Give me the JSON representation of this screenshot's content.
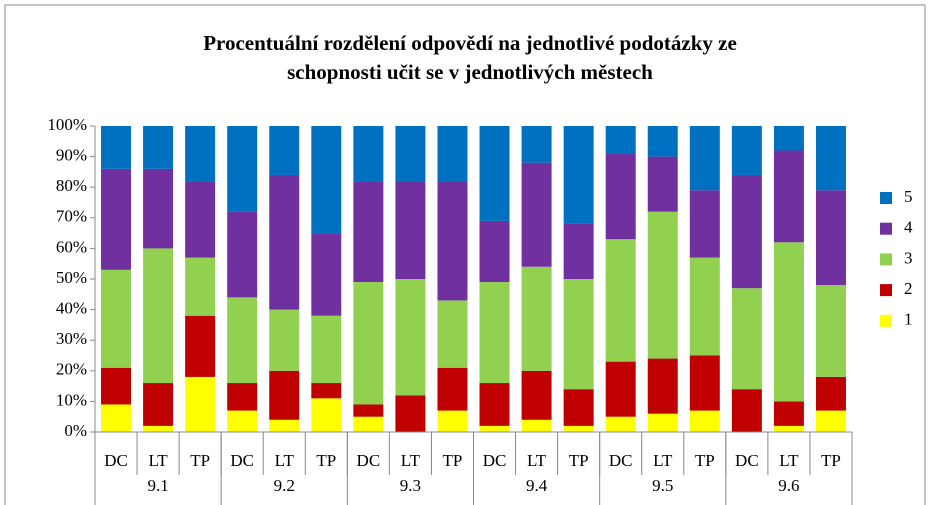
{
  "chart_data": {
    "type": "stacked_bar",
    "title": [
      "Procentuální rozdělení odpovědí na jednotlivé podotázky ze",
      "schopnosti učit se v jednotlivých městech"
    ],
    "categories": [
      "DC",
      "LT",
      "TP",
      "DC",
      "LT",
      "TP",
      "DC",
      "LT",
      "TP",
      "DC",
      "LT",
      "TP",
      "DC",
      "LT",
      "TP",
      "DC",
      "LT",
      "TP"
    ],
    "groups": [
      "9.1",
      "9.2",
      "9.3",
      "9.4",
      "9.5",
      "9.6"
    ],
    "series": [
      {
        "name": "1",
        "color": "#ffff00",
        "values": [
          9,
          2,
          18,
          7,
          4,
          11,
          5,
          0,
          7,
          2,
          4,
          2,
          5,
          6,
          7,
          0,
          2,
          7
        ]
      },
      {
        "name": "2",
        "color": "#c00000",
        "values": [
          12,
          14,
          20,
          9,
          16,
          5,
          4,
          12,
          14,
          14,
          16,
          12,
          18,
          18,
          18,
          14,
          8,
          11
        ]
      },
      {
        "name": "3",
        "color": "#92d050",
        "values": [
          32,
          44,
          19,
          28,
          20,
          22,
          40,
          38,
          22,
          33,
          34,
          36,
          40,
          48,
          32,
          33,
          52,
          30
        ]
      },
      {
        "name": "4",
        "color": "#7030a0",
        "values": [
          33,
          26,
          25,
          28,
          44,
          27,
          33,
          32,
          39,
          20,
          34,
          18,
          28,
          18,
          22,
          37,
          30,
          31
        ]
      },
      {
        "name": "5",
        "color": "#0070c0",
        "values": [
          14,
          14,
          18,
          28,
          16,
          35,
          18,
          18,
          18,
          31,
          12,
          32,
          9,
          10,
          21,
          16,
          8,
          21
        ]
      }
    ],
    "ylim": [
      0,
      100
    ],
    "yticks": [
      {
        "value": 0,
        "label": "0%"
      },
      {
        "value": 10,
        "label": "10%"
      },
      {
        "value": 20,
        "label": "20%"
      },
      {
        "value": 30,
        "label": "30%"
      },
      {
        "value": 40,
        "label": "40%"
      },
      {
        "value": 50,
        "label": "50%"
      },
      {
        "value": 60,
        "label": "60%"
      },
      {
        "value": 70,
        "label": "70%"
      },
      {
        "value": 80,
        "label": "80%"
      },
      {
        "value": 90,
        "label": "90%"
      },
      {
        "value": 100,
        "label": "100%"
      }
    ],
    "grid": false,
    "legend": "right"
  }
}
